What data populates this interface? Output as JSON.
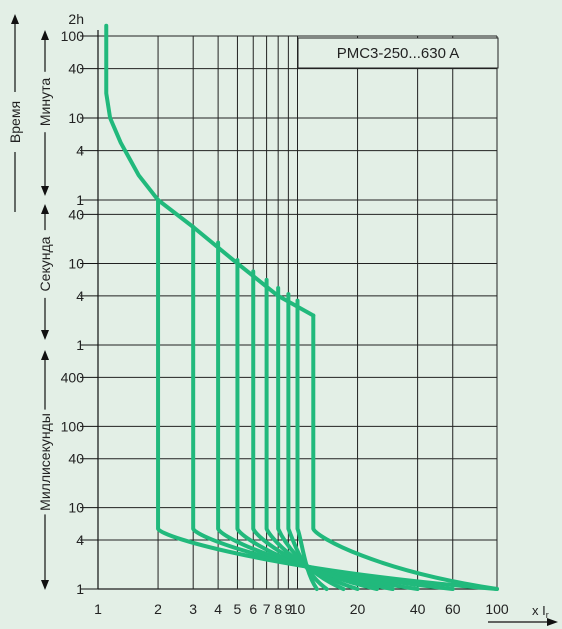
{
  "chart_data": {
    "type": "line",
    "title": "PMC3-250...630 A",
    "ylabel": "Время",
    "xlabel": "x I",
    "xlabel_subscript": "r",
    "x_scale": "log",
    "y_scale": "log",
    "xlim": [
      1,
      100
    ],
    "ylim_seconds": [
      0.001,
      7200
    ],
    "grid": true,
    "colors": {
      "background": "#e3efe6",
      "curve": "#21b97c",
      "grid": "#222222",
      "axis": "#111111"
    },
    "x_ticks": [
      {
        "value": 1,
        "label": "1"
      },
      {
        "value": 2,
        "label": "2"
      },
      {
        "value": 3,
        "label": "3"
      },
      {
        "value": 4,
        "label": "4"
      },
      {
        "value": 5,
        "label": "5"
      },
      {
        "value": 6,
        "label": "6"
      },
      {
        "value": 7,
        "label": "7"
      },
      {
        "value": 8,
        "label": "8"
      },
      {
        "value": 9,
        "label": "9"
      },
      {
        "value": 10,
        "label": "10"
      },
      {
        "value": 20,
        "label": "20"
      },
      {
        "value": 40,
        "label": "40"
      },
      {
        "value": 60,
        "label": "60"
      },
      {
        "value": 100,
        "label": "100"
      }
    ],
    "y_ticks": [
      {
        "seconds": 7200,
        "label": "2h",
        "line": false
      },
      {
        "seconds": 6000,
        "label": "100",
        "line": true
      },
      {
        "seconds": 2400,
        "label": "40",
        "line": true
      },
      {
        "seconds": 600,
        "label": "10",
        "line": true
      },
      {
        "seconds": 240,
        "label": "4",
        "line": true
      },
      {
        "seconds": 60,
        "label": "1",
        "line": true
      },
      {
        "seconds": 40,
        "label": "40",
        "line": true
      },
      {
        "seconds": 10,
        "label": "10",
        "line": true
      },
      {
        "seconds": 4,
        "label": "4",
        "line": true
      },
      {
        "seconds": 1,
        "label": "1",
        "line": true
      },
      {
        "seconds": 0.4,
        "label": "400",
        "line": true
      },
      {
        "seconds": 0.1,
        "label": "100",
        "line": true
      },
      {
        "seconds": 0.04,
        "label": "40",
        "line": true
      },
      {
        "seconds": 0.01,
        "label": "10",
        "line": true
      },
      {
        "seconds": 0.004,
        "label": "4",
        "line": true
      },
      {
        "seconds": 0.001,
        "label": "1",
        "line": true
      }
    ],
    "time_bands": [
      {
        "label": "Минута",
        "from_seconds": 7200,
        "to_seconds": 60
      },
      {
        "label": "Секунда",
        "from_seconds": 60,
        "to_seconds": 1
      },
      {
        "label": "Миллисекунды",
        "from_seconds": 1,
        "to_seconds": 0.001
      }
    ],
    "long_delay_curve": [
      {
        "x": 1.1,
        "t_s": 8000
      },
      {
        "x": 1.1,
        "t_s": 1200
      },
      {
        "x": 1.15,
        "t_s": 600
      },
      {
        "x": 1.3,
        "t_s": 300
      },
      {
        "x": 1.6,
        "t_s": 120
      },
      {
        "x": 2.0,
        "t_s": 60
      },
      {
        "x": 3.0,
        "t_s": 28
      },
      {
        "x": 5.0,
        "t_s": 10
      },
      {
        "x": 8.0,
        "t_s": 4
      },
      {
        "x": 12,
        "t_s": 2.3
      }
    ],
    "series": [
      {
        "x": 2,
        "t_top_s": 60,
        "t_drop_s": 0.0055,
        "x_end": 100,
        "t_end_s": 0.001
      },
      {
        "x": 3,
        "t_top_s": 28,
        "t_drop_s": 0.0055,
        "x_end": 60,
        "t_end_s": 0.001
      },
      {
        "x": 4,
        "t_top_s": 18,
        "t_drop_s": 0.0055,
        "x_end": 40,
        "t_end_s": 0.001
      },
      {
        "x": 5,
        "t_top_s": 11,
        "t_drop_s": 0.0055,
        "x_end": 30,
        "t_end_s": 0.001
      },
      {
        "x": 6,
        "t_top_s": 8,
        "t_drop_s": 0.0055,
        "x_end": 25,
        "t_end_s": 0.001
      },
      {
        "x": 7,
        "t_top_s": 6.3,
        "t_drop_s": 0.0055,
        "x_end": 20,
        "t_end_s": 0.001
      },
      {
        "x": 8,
        "t_top_s": 5.0,
        "t_drop_s": 0.0055,
        "x_end": 17,
        "t_end_s": 0.001
      },
      {
        "x": 9,
        "t_top_s": 4.2,
        "t_drop_s": 0.0055,
        "x_end": 14,
        "t_end_s": 0.001
      },
      {
        "x": 10,
        "t_top_s": 3.5,
        "t_drop_s": 0.0055,
        "x_end": 12.5,
        "t_end_s": 0.001
      },
      {
        "x": 12,
        "t_top_s": 2.3,
        "t_drop_s": 0.0055,
        "x_end": 100,
        "t_end_s": 0.001
      }
    ]
  }
}
